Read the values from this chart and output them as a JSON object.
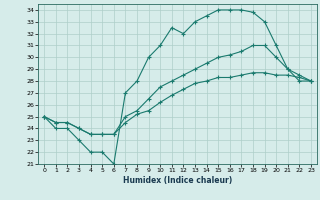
{
  "title": "",
  "xlabel": "Humidex (Indice chaleur)",
  "xlim": [
    -0.5,
    23.5
  ],
  "ylim": [
    21,
    34.5
  ],
  "yticks": [
    21,
    22,
    23,
    24,
    25,
    26,
    27,
    28,
    29,
    30,
    31,
    32,
    33,
    34
  ],
  "xticks": [
    0,
    1,
    2,
    3,
    4,
    5,
    6,
    7,
    8,
    9,
    10,
    11,
    12,
    13,
    14,
    15,
    16,
    17,
    18,
    19,
    20,
    21,
    22,
    23
  ],
  "bg_color": "#d6ecea",
  "grid_color": "#aecfca",
  "line_color": "#1a7a6e",
  "line1_x": [
    0,
    1,
    2,
    3,
    4,
    5,
    6,
    7,
    8,
    9,
    10,
    11,
    12,
    13,
    14,
    15,
    16,
    17,
    18,
    19,
    20,
    21,
    22,
    23
  ],
  "line1_y": [
    25,
    24,
    24,
    23,
    22,
    22,
    21,
    27,
    28,
    30,
    31,
    32.5,
    32,
    33,
    33.5,
    34,
    34,
    34,
    33.8,
    33,
    31,
    29,
    28,
    28
  ],
  "line2_x": [
    0,
    1,
    2,
    3,
    4,
    5,
    6,
    7,
    8,
    9,
    10,
    11,
    12,
    13,
    14,
    15,
    16,
    17,
    18,
    19,
    20,
    21,
    22,
    23
  ],
  "line2_y": [
    25,
    24.5,
    24.5,
    24,
    23.5,
    23.5,
    23.5,
    25,
    25.5,
    26.5,
    27.5,
    28,
    28.5,
    29,
    29.5,
    30,
    30.2,
    30.5,
    31,
    31,
    30,
    29,
    28.5,
    28
  ],
  "line3_x": [
    0,
    1,
    2,
    3,
    4,
    5,
    6,
    7,
    8,
    9,
    10,
    11,
    12,
    13,
    14,
    15,
    16,
    17,
    18,
    19,
    20,
    21,
    22,
    23
  ],
  "line3_y": [
    25,
    24.5,
    24.5,
    24,
    23.5,
    23.5,
    23.5,
    24.5,
    25.2,
    25.5,
    26.2,
    26.8,
    27.3,
    27.8,
    28,
    28.3,
    28.3,
    28.5,
    28.7,
    28.7,
    28.5,
    28.5,
    28.3,
    28
  ]
}
